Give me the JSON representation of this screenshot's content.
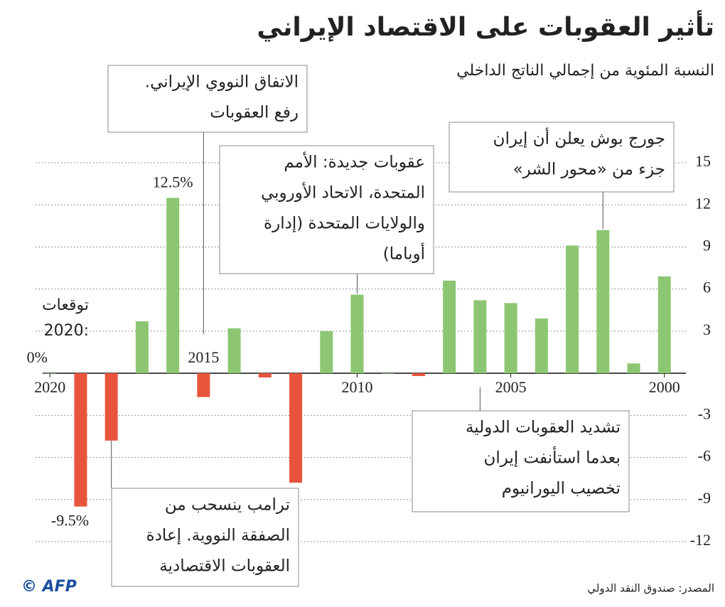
{
  "chart_data": {
    "type": "bar",
    "title": "تأثير العقوبات على الاقتصاد الإيراني",
    "subtitle": "النسبة المئوية من إجمالي الناتج الداخلي",
    "source": "المصدر: صندوق النقد الدولي",
    "credit": "© AFP",
    "x": [
      2000,
      2001,
      2002,
      2003,
      2004,
      2005,
      2006,
      2007,
      2008,
      2009,
      2010,
      2011,
      2012,
      2013,
      2014,
      2015,
      2016,
      2017,
      2018,
      2019,
      2020
    ],
    "values": [
      6.9,
      0.7,
      10.2,
      9.1,
      3.9,
      5.0,
      5.2,
      6.6,
      -0.2,
      0,
      5.6,
      3.0,
      -7.8,
      -0.3,
      3.2,
      -1.7,
      12.5,
      3.7,
      -4.8,
      -9.5,
      0
    ],
    "value_labels": [
      null,
      null,
      null,
      null,
      null,
      null,
      null,
      null,
      null,
      null,
      null,
      null,
      null,
      null,
      null,
      null,
      "12.5%",
      null,
      null,
      "-9.5%",
      "0%"
    ],
    "positive_color": "#8cc672",
    "negative_color": "#e8553c",
    "xlim": [
      2021,
      1999
    ],
    "xticks": [
      2000,
      2005,
      2010,
      2015,
      2020
    ],
    "ylim": [
      -12,
      15
    ],
    "yticks": [
      -12,
      -9,
      -6,
      -3,
      3,
      6,
      9,
      12,
      15
    ],
    "grid": true,
    "forecast_note": [
      "توقعات",
      ":2020"
    ],
    "annotations": [
      {
        "year": 2015,
        "lines": [
          "الاتفاق النووي الإيراني.",
          "رفع العقوبات"
        ]
      },
      {
        "year": 2010,
        "lines": [
          "عقوبات جديدة: الأمم",
          "المتحدة، الاتحاد الأوروبي",
          "والولايات المتحدة (إدارة",
          "أوباما)"
        ]
      },
      {
        "year": 2002,
        "lines": [
          "جورج بوش يعلن أن إيران",
          "جزء من «محور الشر»"
        ]
      },
      {
        "year": 2006,
        "lines": [
          "تشديد العقوبات الدولية",
          "بعدما استأنفت إيران",
          "تخصيب اليورانيوم"
        ]
      },
      {
        "year": 2018,
        "lines": [
          "ترامب ينسحب من",
          "الصفقة النووية. إعادة",
          "العقوبات الاقتصادية"
        ]
      }
    ]
  }
}
